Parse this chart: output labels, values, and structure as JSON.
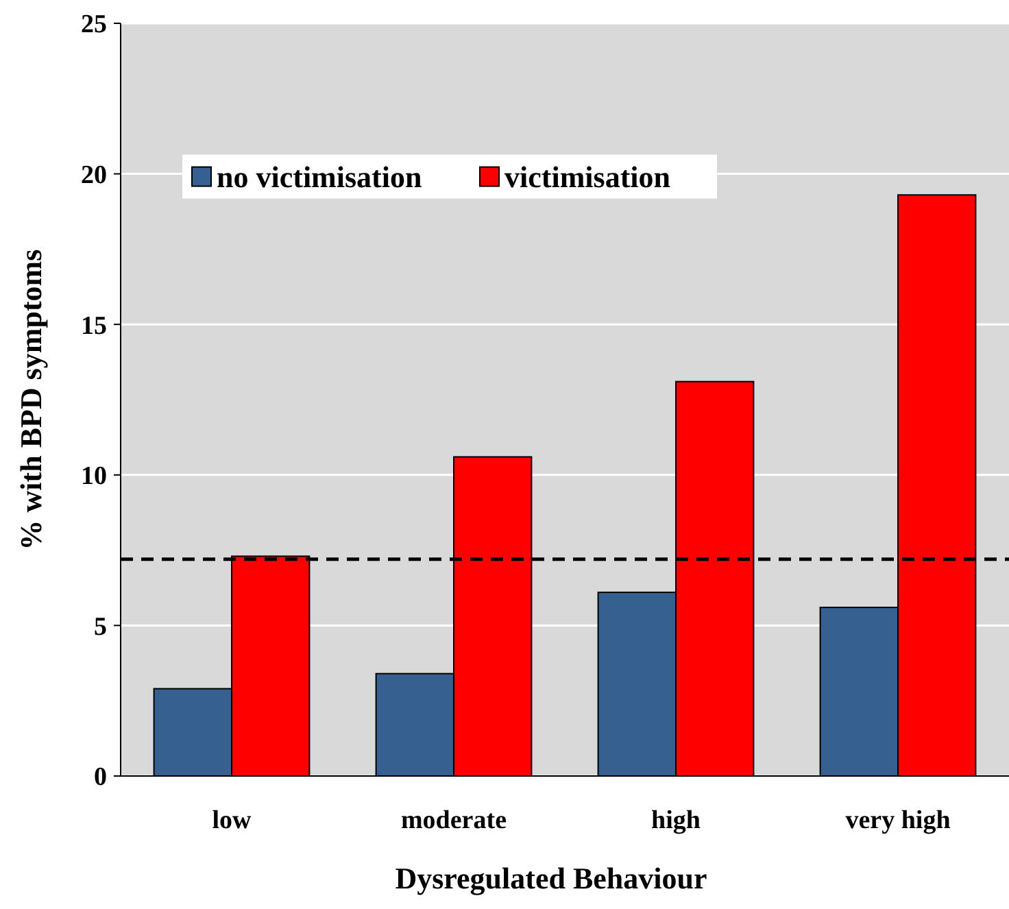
{
  "chart_data": {
    "type": "bar",
    "xlabel": "Dysregulated Behaviour",
    "ylabel": "% with BPD symptoms",
    "categories": [
      "low",
      "moderate",
      "high",
      "very high"
    ],
    "series": [
      {
        "name": "no victimisation",
        "color": "#36608f",
        "values": [
          2.9,
          3.4,
          6.1,
          5.6
        ]
      },
      {
        "name": "victimisation",
        "color": "#ff0000",
        "values": [
          7.3,
          10.6,
          13.1,
          19.3
        ]
      }
    ],
    "ylim": [
      0,
      25
    ],
    "yticks": [
      0,
      5,
      10,
      15,
      20,
      25
    ],
    "grid": "y",
    "legend": "top left",
    "ref_lines": [
      {
        "axis": "y",
        "value": 7.2,
        "color": "#000000",
        "line_style": "dashed"
      }
    ]
  }
}
